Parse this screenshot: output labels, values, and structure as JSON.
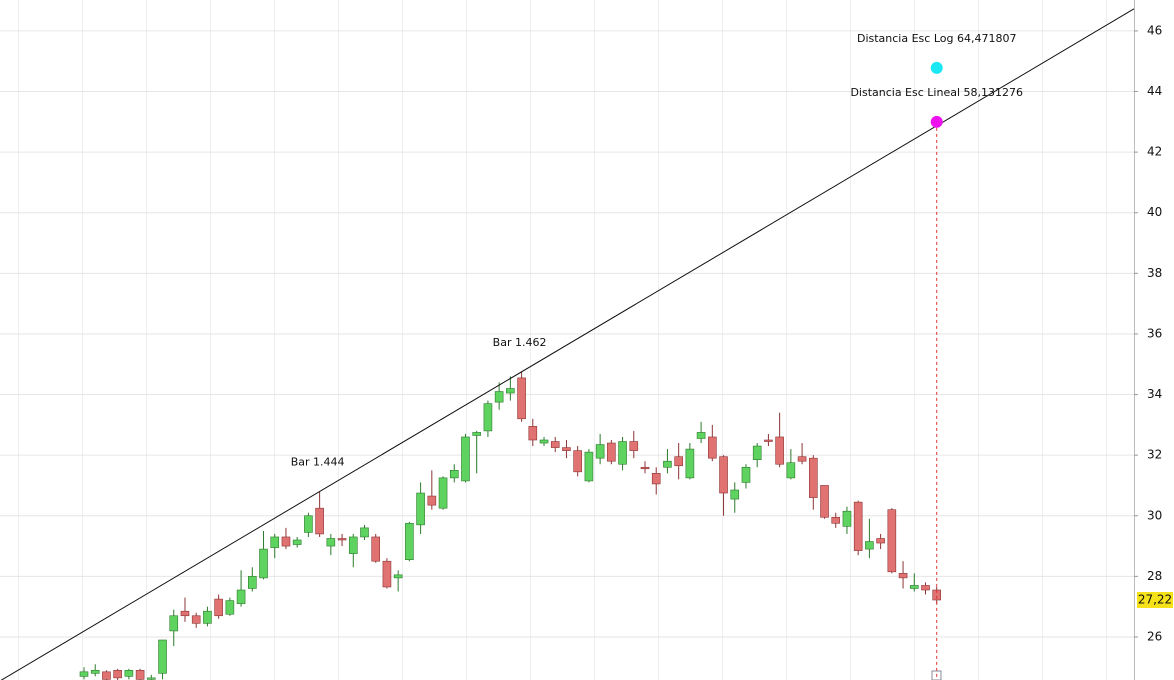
{
  "chart_data": {
    "type": "candlestick",
    "categories": [
      null,
      null,
      null,
      null,
      null,
      null,
      null,
      null,
      null,
      null,
      null,
      null,
      null,
      null,
      null,
      null,
      null,
      null,
      null,
      null,
      null,
      null,
      null,
      null,
      null,
      null,
      null,
      null,
      null,
      null,
      null,
      null,
      null,
      null,
      null,
      null,
      null,
      null,
      null,
      null,
      null,
      null,
      null,
      null,
      null,
      null,
      null,
      null,
      null,
      null,
      null,
      null,
      null,
      null,
      null,
      null,
      null,
      null,
      null,
      null,
      null,
      null,
      null,
      null,
      null,
      null,
      null,
      null,
      null,
      null,
      null,
      null,
      null,
      null,
      null,
      null,
      null
    ],
    "open": [
      24.7,
      24.8,
      24.85,
      24.9,
      24.7,
      24.9,
      24.6,
      24.8,
      26.2,
      26.85,
      26.7,
      26.45,
      27.25,
      26.75,
      27.1,
      27.6,
      27.95,
      28.95,
      29.3,
      29.05,
      29.45,
      30.25,
      29.0,
      29.25,
      28.75,
      29.3,
      29.3,
      28.5,
      27.95,
      28.55,
      29.7,
      30.65,
      30.25,
      31.25,
      31.15,
      32.65,
      32.8,
      33.75,
      34.05,
      34.55,
      32.95,
      32.4,
      32.45,
      32.25,
      32.15,
      31.15,
      31.9,
      32.4,
      31.7,
      32.45,
      31.6,
      31.4,
      31.6,
      31.95,
      31.25,
      32.55,
      32.6,
      31.95,
      30.55,
      31.1,
      31.85,
      32.5,
      32.6,
      31.25,
      31.95,
      31.9,
      31.0,
      29.95,
      29.65,
      30.45,
      28.9,
      29.25,
      30.2,
      28.1,
      27.6,
      27.7,
      27.55
    ],
    "high": [
      25.0,
      25.1,
      24.9,
      24.95,
      24.95,
      24.95,
      24.75,
      25.9,
      26.9,
      27.3,
      26.8,
      27.0,
      27.4,
      27.3,
      28.2,
      28.3,
      29.5,
      29.4,
      29.6,
      29.3,
      30.1,
      30.8,
      29.4,
      29.4,
      29.4,
      29.7,
      29.4,
      28.6,
      28.2,
      29.8,
      31.1,
      31.5,
      31.3,
      31.7,
      32.7,
      32.8,
      33.8,
      34.4,
      34.6,
      34.75,
      33.2,
      32.6,
      32.6,
      32.5,
      32.3,
      32.2,
      32.7,
      32.5,
      32.6,
      32.8,
      31.8,
      31.6,
      32.2,
      32.4,
      32.4,
      33.1,
      33.0,
      32.0,
      31.1,
      31.7,
      32.4,
      32.7,
      33.4,
      32.2,
      32.4,
      32.0,
      31.0,
      30.1,
      30.3,
      30.5,
      29.9,
      29.4,
      30.25,
      28.5,
      28.1,
      27.8,
      27.65
    ],
    "low": [
      24.6,
      24.7,
      24.5,
      24.55,
      24.6,
      24.5,
      24.5,
      24.6,
      25.7,
      26.5,
      26.3,
      26.35,
      26.6,
      26.7,
      27.0,
      27.5,
      27.9,
      28.6,
      28.9,
      28.95,
      29.3,
      29.3,
      28.7,
      29.0,
      28.3,
      29.2,
      28.45,
      27.6,
      27.5,
      28.5,
      29.4,
      30.2,
      30.2,
      31.1,
      31.1,
      31.4,
      32.6,
      33.5,
      33.8,
      33.1,
      32.3,
      32.3,
      32.1,
      31.9,
      31.3,
      31.1,
      31.7,
      31.7,
      31.5,
      31.9,
      31.4,
      30.7,
      31.4,
      31.2,
      31.2,
      32.4,
      31.8,
      30.0,
      30.1,
      30.9,
      31.6,
      32.3,
      31.6,
      31.2,
      31.7,
      30.2,
      29.9,
      29.6,
      29.4,
      28.7,
      28.6,
      28.9,
      28.1,
      27.6,
      27.5,
      27.4,
      27.1
    ],
    "close": [
      24.85,
      24.9,
      24.6,
      24.65,
      24.9,
      24.6,
      24.65,
      25.9,
      26.7,
      26.7,
      26.45,
      26.85,
      26.7,
      27.2,
      27.55,
      28.0,
      28.9,
      29.3,
      29.0,
      29.2,
      30.0,
      29.4,
      29.25,
      29.2,
      29.3,
      29.6,
      28.5,
      27.65,
      28.05,
      29.75,
      30.75,
      30.35,
      31.25,
      31.5,
      32.6,
      32.75,
      33.7,
      34.1,
      34.2,
      33.2,
      32.5,
      32.5,
      32.25,
      32.15,
      31.45,
      32.1,
      32.35,
      31.8,
      32.45,
      32.15,
      31.55,
      31.05,
      31.8,
      31.65,
      32.2,
      32.75,
      31.9,
      30.75,
      30.85,
      31.6,
      32.3,
      32.45,
      31.7,
      31.75,
      31.8,
      30.6,
      29.95,
      29.75,
      30.15,
      28.85,
      29.15,
      29.1,
      28.15,
      27.95,
      27.7,
      27.55,
      27.22
    ],
    "up_color": "#5fd35f",
    "down_color": "#e07272",
    "last_price": {
      "value": 27.22,
      "label": "27,22"
    },
    "trendline": {
      "x": [
        21,
        39
      ],
      "y": [
        30.8,
        34.75
      ]
    },
    "annotations": [
      "Bar 1.444",
      "Bar 1.462"
    ],
    "points": [
      {
        "name": "Distancia Esc Log 64,471807",
        "color": "#19e8f2",
        "value": 44.78
      },
      {
        "name": "Distancia Esc Lineal 58,131276",
        "color": "#ee11ee",
        "value": 43.0
      }
    ],
    "ylim": [
      24.58,
      47.02
    ],
    "yticks": [
      26,
      28,
      30,
      32,
      34,
      36,
      38,
      40,
      42,
      44,
      46
    ],
    "grid": true
  }
}
